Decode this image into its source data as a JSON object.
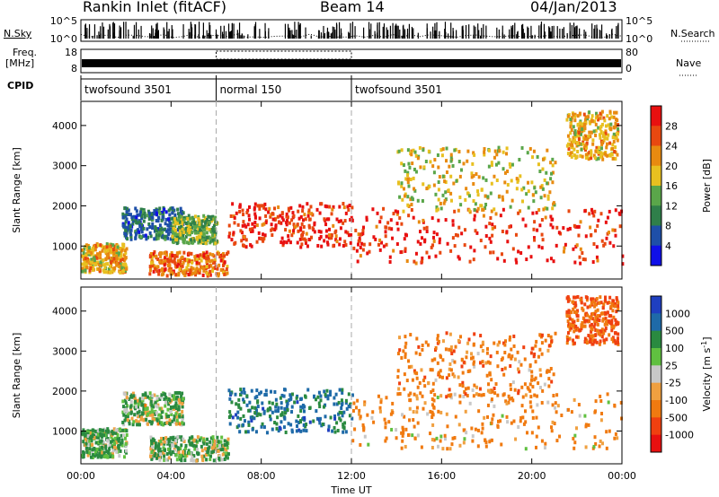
{
  "header": {
    "site": "Rankin Inlet (fitACF)",
    "beam": "Beam 14",
    "date": "04/Jan/2013"
  },
  "summary_panels": {
    "nsky_label": "N.Sky",
    "nsearch_label": "N.Search",
    "nsky_ticks": [
      "10^5",
      "10^0"
    ],
    "nsearch_ticks": [
      "10^5",
      "10^0"
    ],
    "freq_label_line1": "Freq.",
    "freq_label_line2": "[MHz]",
    "freq_ticks": [
      "18",
      "8"
    ],
    "nave_label": "Nave",
    "nave_ticks": [
      "80",
      "0"
    ],
    "cpid_label": "CPID",
    "cpid_segments": [
      {
        "label": "twofsound 3501",
        "start": 0,
        "end": 6
      },
      {
        "label": "normal 150",
        "start": 6,
        "end": 12
      },
      {
        "label": "twofsound 3501",
        "start": 12,
        "end": 24
      }
    ]
  },
  "time_axis": {
    "title": "Time UT",
    "ticks": [
      "00:00",
      "04:00",
      "08:00",
      "12:00",
      "16:00",
      "20:00",
      "00:00"
    ]
  },
  "range_axis": {
    "title": "Slant Range [km]",
    "ticks": [
      "1000",
      "2000",
      "3000",
      "4000"
    ]
  },
  "power_colorbar": {
    "title": "Power [dB]",
    "ticks": [
      "4",
      "8",
      "12",
      "16",
      "20",
      "24",
      "28"
    ],
    "colors": [
      "#1010e8",
      "#1e4fa8",
      "#2f7f4a",
      "#5aa64a",
      "#e8c020",
      "#e88a10",
      "#e84810",
      "#e81010"
    ]
  },
  "velocity_colorbar": {
    "title": "Velocity [m s",
    "title_sup": "-1",
    "title_end": "]",
    "ticks": [
      "1000",
      "500",
      "100",
      "25",
      "-25",
      "-100",
      "-500",
      "-1000"
    ],
    "colors": [
      "#1f3fc0",
      "#1e6aa8",
      "#2a8a40",
      "#60c040",
      "#c8c8c8",
      "#f0a040",
      "#f07a10",
      "#f04010",
      "#e81010"
    ]
  },
  "chart_data": [
    {
      "type": "heatmap",
      "title": "Power",
      "xlabel": "Time UT",
      "ylabel": "Slant Range [km]",
      "xlim": [
        0,
        24
      ],
      "ylim": [
        180,
        4600
      ],
      "zlabel": "Power [dB]",
      "zlim": [
        0,
        32
      ],
      "regions": [
        {
          "t": [
            0,
            2
          ],
          "r": [
            380,
            1100
          ],
          "z": 20
        },
        {
          "t": [
            1.8,
            4.5
          ],
          "r": [
            1200,
            2000
          ],
          "z": 8
        },
        {
          "t": [
            3,
            6.5
          ],
          "r": [
            300,
            900
          ],
          "z": 24
        },
        {
          "t": [
            4,
            6
          ],
          "r": [
            1100,
            1800
          ],
          "z": 14
        },
        {
          "t": [
            6.5,
            12
          ],
          "r": [
            1000,
            2100
          ],
          "z": 28
        },
        {
          "t": [
            12,
            24
          ],
          "r": [
            600,
            2000
          ],
          "z": 28
        },
        {
          "t": [
            14,
            21
          ],
          "r": [
            1900,
            3500
          ],
          "z": 18
        },
        {
          "t": [
            21.5,
            23.8
          ],
          "r": [
            3200,
            4400
          ],
          "z": 20
        }
      ]
    },
    {
      "type": "heatmap",
      "title": "Velocity",
      "xlabel": "Time UT",
      "ylabel": "Slant Range [km]",
      "xlim": [
        0,
        24
      ],
      "ylim": [
        180,
        4600
      ],
      "zlabel": "Velocity [m s-1]",
      "zlim": [
        -1000,
        1000
      ],
      "regions": [
        {
          "t": [
            0,
            2
          ],
          "r": [
            380,
            1100
          ],
          "z": 100
        },
        {
          "t": [
            1.8,
            4.5
          ],
          "r": [
            1200,
            2000
          ],
          "z": 80
        },
        {
          "t": [
            3,
            6.5
          ],
          "r": [
            300,
            900
          ],
          "z": 100
        },
        {
          "t": [
            6.5,
            12
          ],
          "r": [
            1000,
            2100
          ],
          "z": 600
        },
        {
          "t": [
            12,
            24
          ],
          "r": [
            600,
            2000
          ],
          "z": -200
        },
        {
          "t": [
            14,
            21
          ],
          "r": [
            1900,
            3500
          ],
          "z": -300
        },
        {
          "t": [
            21.5,
            23.8
          ],
          "r": [
            3200,
            4400
          ],
          "z": -500
        }
      ]
    }
  ]
}
